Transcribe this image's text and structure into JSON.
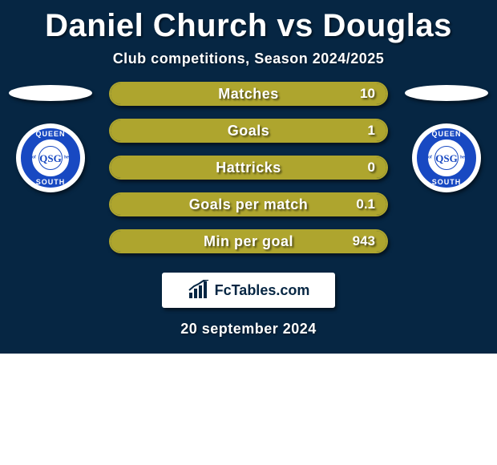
{
  "title": "Daniel Church vs Douglas",
  "subtitle": "Club competitions, Season 2024/2025",
  "date": "20 september 2024",
  "brand": "FcTables.com",
  "colors": {
    "card_bg": "#062643",
    "left_fill": "#aea52e",
    "right_fill": "#aea52e",
    "row_border": "#aea52e",
    "text": "#ffffff",
    "crest_ring": "#1849c2"
  },
  "left": {
    "country_oval_color": "#ffffff",
    "crest_top": "QUEEN",
    "crest_bot": "SOUTH",
    "crest_side": "of the",
    "crest_mono": "QSG"
  },
  "right": {
    "country_oval_color": "#ffffff",
    "crest_top": "QUEEN",
    "crest_bot": "SOUTH",
    "crest_side": "of the",
    "crest_mono": "QSG"
  },
  "rows": [
    {
      "label": "Matches",
      "left": "",
      "right": "10",
      "left_pct": 50,
      "right_pct": 50
    },
    {
      "label": "Goals",
      "left": "",
      "right": "1",
      "left_pct": 50,
      "right_pct": 50
    },
    {
      "label": "Hattricks",
      "left": "",
      "right": "0",
      "left_pct": 50,
      "right_pct": 50
    },
    {
      "label": "Goals per match",
      "left": "",
      "right": "0.1",
      "left_pct": 50,
      "right_pct": 50
    },
    {
      "label": "Min per goal",
      "left": "",
      "right": "943",
      "left_pct": 50,
      "right_pct": 50
    }
  ]
}
